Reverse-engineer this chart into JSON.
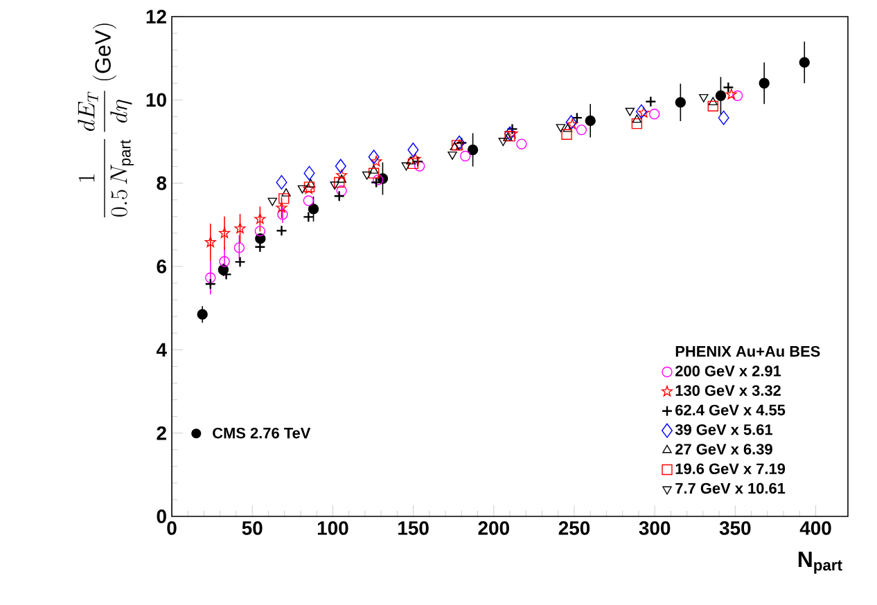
{
  "chart_data": {
    "type": "scatter",
    "xlabel": "N$_{part}$",
    "ylabel": "\\frac{1}{0.5\\,N_{\\mathrm{part}}}\\,\\frac{dE_{T}}{d\\eta}\\;(\\mathrm{GeV})",
    "legend_title": "PHENIX Au+Au BES",
    "legend": "bottom right",
    "xlim": [
      0,
      420
    ],
    "ylim": [
      0,
      12
    ],
    "xticks": [
      0,
      50,
      100,
      150,
      200,
      250,
      300,
      350,
      400
    ],
    "yticks": [
      0,
      2,
      4,
      6,
      8,
      10,
      12
    ],
    "series": [
      {
        "name": "CMS 2.76 TeV",
        "color": "#000000",
        "marker": "filled_circle",
        "x": [
          19,
          32,
          55,
          88,
          131,
          187,
          260,
          316,
          341,
          368,
          393
        ],
        "values": [
          4.85,
          5.92,
          6.67,
          7.38,
          8.11,
          8.8,
          9.5,
          9.94,
          10.1,
          10.4,
          10.9
        ],
        "errors": [
          0.2,
          0.15,
          null,
          0.3,
          0.39,
          0.4,
          0.4,
          0.45,
          0.45,
          0.5,
          0.5
        ]
      },
      {
        "name": "200 GeV x 2.91",
        "color": "#ff00ff",
        "marker": "circle",
        "x": [
          24,
          32.7,
          41.9,
          54.8,
          68.8,
          84.9,
          105.5,
          128.1,
          153.9,
          182.3,
          217.3,
          254.5,
          299.8,
          351.4
        ],
        "values": [
          5.73,
          6.12,
          6.45,
          6.85,
          7.25,
          7.58,
          7.82,
          8.08,
          8.41,
          8.65,
          8.94,
          9.28,
          9.66,
          10.1
        ],
        "errors": [
          0.4,
          0.35,
          0.3,
          null,
          0.2,
          null,
          null,
          null,
          null,
          null,
          null,
          null,
          null,
          null
        ]
      },
      {
        "name": "130 GeV x 3.32",
        "color": "#ff0000",
        "marker": "star",
        "x": [
          24,
          32.7,
          42.4,
          54.8,
          68.2,
          85.1,
          105.5,
          127,
          151.3,
          178.6,
          211.5,
          248.8,
          293.2,
          347.6
        ],
        "values": [
          6.58,
          6.8,
          6.91,
          7.14,
          7.41,
          7.86,
          8.19,
          8.52,
          8.58,
          8.91,
          9.19,
          9.41,
          9.69,
          10.13
        ],
        "errors": [
          0.45,
          0.4,
          0.35,
          0.3,
          0.25,
          null,
          null,
          null,
          null,
          null,
          null,
          null,
          null,
          null
        ]
      },
      {
        "name": "62.4 GeV x 4.55",
        "color": "#000000",
        "marker": "cross",
        "x": [
          24,
          33.8,
          42.4,
          54.8,
          68.2,
          84.9,
          104,
          127,
          152.8,
          180,
          211.5,
          251.7,
          297.5,
          345.7
        ],
        "values": [
          5.58,
          5.81,
          6.11,
          6.47,
          6.86,
          7.19,
          7.69,
          8.02,
          8.52,
          8.97,
          9.3,
          9.57,
          9.96,
          10.3
        ]
      },
      {
        "name": "39 GeV x 5.61",
        "color": "#0000ff",
        "marker": "diamond",
        "x": [
          68.2,
          85.4,
          104.9,
          125.5,
          149.9,
          178.6,
          210,
          248.1,
          291.7,
          342.8
        ],
        "values": [
          8.02,
          8.24,
          8.41,
          8.63,
          8.8,
          8.97,
          9.19,
          9.46,
          9.72,
          9.57
        ]
      },
      {
        "name": "27 GeV x 6.39",
        "color": "#000000",
        "marker": "triangle",
        "x": [
          71,
          86.3,
          105.5,
          125.5,
          148.5,
          175.7,
          208.7,
          245.9,
          288.9,
          336.2
        ],
        "values": [
          7.75,
          7.97,
          8.08,
          8.3,
          8.52,
          8.86,
          9.08,
          9.3,
          9.52,
          9.94
        ]
      },
      {
        "name": "19.6 GeV x 7.19",
        "color": "#ff0000",
        "marker": "square",
        "x": [
          69.6,
          85.4,
          104,
          125.5,
          149.9,
          177.1,
          210,
          245.3,
          288.9,
          336.2
        ],
        "values": [
          7.63,
          7.91,
          8.02,
          8.24,
          8.47,
          8.91,
          9.13,
          9.17,
          9.43,
          9.85
        ]
      },
      {
        "name": "7.7 GeV x 10.61",
        "color": "#000000",
        "marker": "triangle_down",
        "x": [
          62.5,
          81.1,
          101.2,
          121.2,
          145.6,
          174.3,
          205.8,
          241.6,
          284.6,
          330.4
        ],
        "values": [
          7.58,
          7.88,
          7.97,
          8.21,
          8.43,
          8.69,
          9.02,
          9.35,
          9.74,
          10.07
        ]
      }
    ]
  }
}
